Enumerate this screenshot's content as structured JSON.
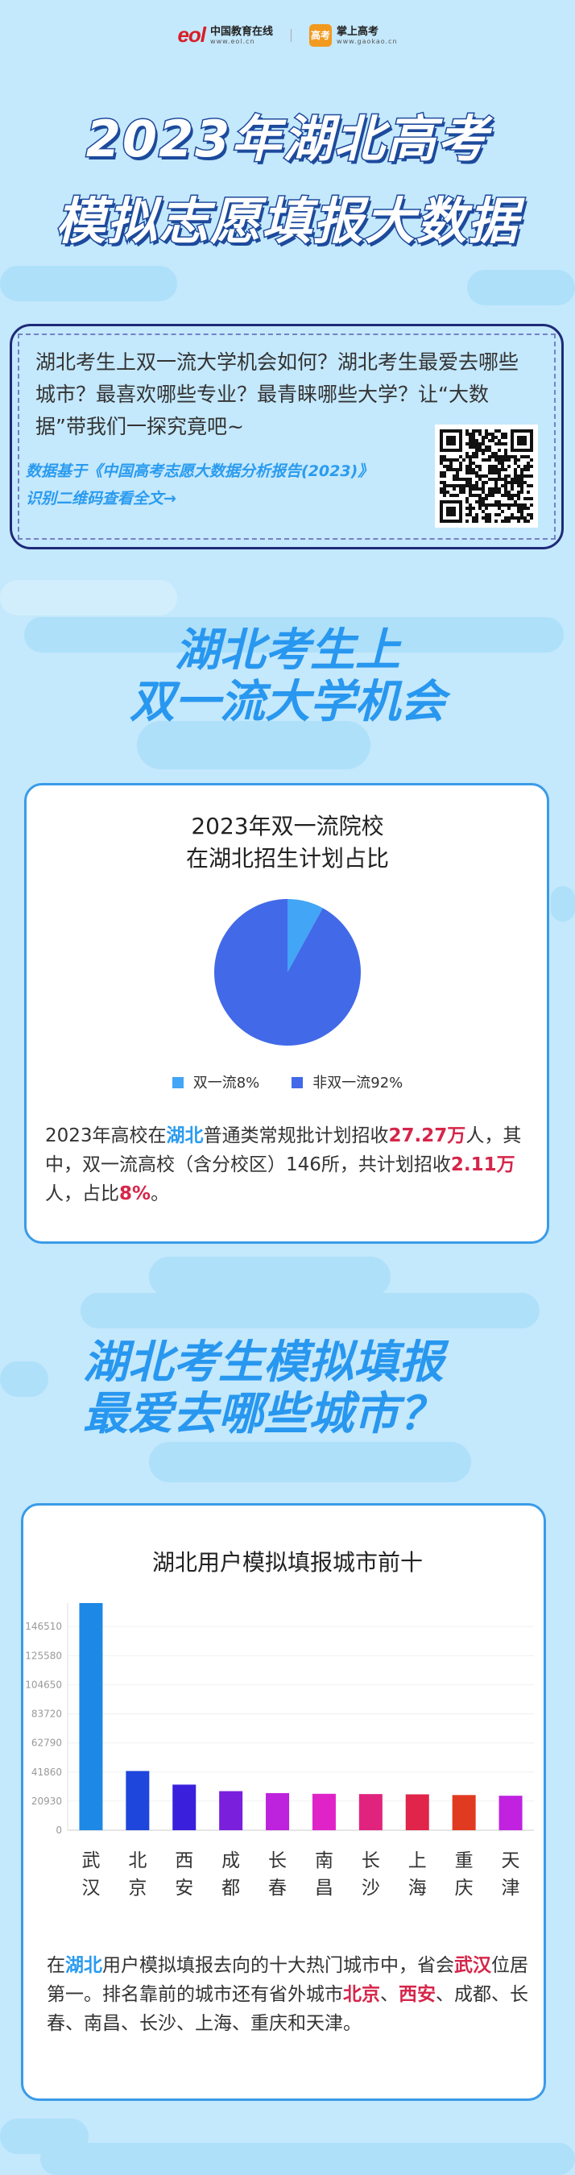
{
  "header": {
    "eol_logo": {
      "mark": "eol",
      "name": "中国教育在线",
      "url": "www.eol.cn"
    },
    "gaokao_logo": {
      "mark": "高考",
      "name": "掌上高考",
      "url": "www.gaokao.cn"
    }
  },
  "title": {
    "line1": "2023年湖北高考",
    "line2": "模拟志愿填报大数据"
  },
  "intro": {
    "text": "湖北考生上双一流大学机会如何？湖北考生最爱去哪些城市？最喜欢哪些专业？最青睐哪些大学？让“大数据”带我们一探究竟吧~",
    "source": "数据基于《中国高考志愿大数据分析报告(2023)》",
    "qr_hint": "识别二维码查看全文→"
  },
  "section1": {
    "heading_line1": "湖北考生上",
    "heading_line2": "双一流大学机会",
    "paragraph": [
      {
        "text": "2023年高校在",
        "style": "normal"
      },
      {
        "text": "湖北",
        "style": "blue"
      },
      {
        "text": "普通类常规批计划招收",
        "style": "normal"
      },
      {
        "text": "27.27万",
        "style": "red"
      },
      {
        "text": "人，其中，双一流高校（含分校区）146所，共计划招收",
        "style": "normal"
      },
      {
        "text": "2.11万",
        "style": "red"
      },
      {
        "text": "人，占比",
        "style": "normal"
      },
      {
        "text": "8%",
        "style": "red"
      },
      {
        "text": "。",
        "style": "normal"
      }
    ]
  },
  "section2": {
    "heading_line1": "湖北考生模拟填报",
    "heading_line2": "最爱去哪些城市？",
    "paragraph": [
      {
        "text": "在",
        "style": "normal"
      },
      {
        "text": "湖北",
        "style": "blue"
      },
      {
        "text": "用户模拟填报去向的十大热门城市中，省会",
        "style": "normal"
      },
      {
        "text": "武汉",
        "style": "red"
      },
      {
        "text": "位居第一。排名靠前的城市还有省外城市",
        "style": "normal"
      },
      {
        "text": "北京",
        "style": "red"
      },
      {
        "text": "、",
        "style": "normal"
      },
      {
        "text": "西安",
        "style": "red"
      },
      {
        "text": "、成都、长春、南昌、长沙、上海、重庆和天津。",
        "style": "normal"
      }
    ]
  },
  "chart_data": [
    {
      "type": "pie",
      "title": "2023年双一流院校\n在湖北招生计划占比",
      "title_line1": "2023年双一流院校",
      "title_line2": "在湖北招生计划占比",
      "slices": [
        {
          "name": "双一流8%",
          "value": 8,
          "color": "#42a5f5"
        },
        {
          "name": "非双一流92%",
          "value": 92,
          "color": "#4169e8"
        }
      ],
      "legend": "bottom"
    },
    {
      "type": "bar",
      "title": "湖北用户模拟填报城市前十",
      "categories": [
        "武汉",
        "北京",
        "西安",
        "成都",
        "长春",
        "南昌",
        "长沙",
        "上海",
        "重庆",
        "天津"
      ],
      "values": [
        167440,
        42600,
        32800,
        28100,
        26700,
        26200,
        26000,
        25800,
        25300,
        24800
      ],
      "colors": [
        "#1e88e5",
        "#1e46dc",
        "#3a20dc",
        "#7a1fdc",
        "#bd22dc",
        "#e023c8",
        "#e0247e",
        "#e0244a",
        "#e03a20",
        "#c022e0"
      ],
      "yticks": [
        "0",
        "20930",
        "41860",
        "62790",
        "83720",
        "104650",
        "125580",
        "146510",
        "167440"
      ],
      "ylim": [
        0,
        167440
      ],
      "grid": true
    }
  ]
}
